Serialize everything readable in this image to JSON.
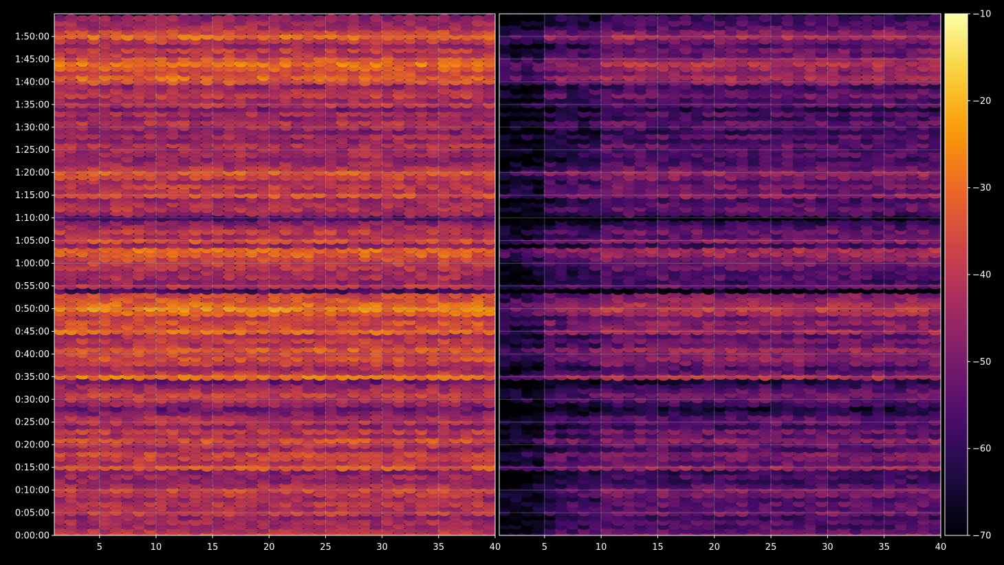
{
  "chart_data": {
    "type": "heatmap",
    "title": "",
    "xlabel": "",
    "ylabel": "",
    "background": "#000000",
    "grid": true,
    "colormap": "inferno",
    "colormap_stops": [
      "#000004",
      "#1b0c41",
      "#4a0c6b",
      "#781c6d",
      "#a52c60",
      "#cf4446",
      "#ed6925",
      "#fb9b06",
      "#f7d13d",
      "#fcffa4"
    ],
    "panels": [
      {
        "name": "left",
        "xlim": [
          1,
          40
        ],
        "x_ticks": [
          "5",
          "10",
          "15",
          "20",
          "25",
          "30",
          "35",
          "40"
        ],
        "x_tick_values": [
          5,
          10,
          15,
          20,
          25,
          30,
          35,
          40
        ],
        "level_offset": 0
      },
      {
        "name": "right",
        "xlim": [
          1,
          40
        ],
        "x_ticks": [
          "5",
          "10",
          "15",
          "20",
          "25",
          "30",
          "35",
          "40"
        ],
        "x_tick_values": [
          5,
          10,
          15,
          20,
          25,
          30,
          35,
          40
        ],
        "level_offset": -12
      }
    ],
    "y_range_seconds": [
      0,
      6900
    ],
    "y_ticks": [
      "0:00:00",
      "0:05:00",
      "0:10:00",
      "0:15:00",
      "0:20:00",
      "0:25:00",
      "0:30:00",
      "0:35:00",
      "0:40:00",
      "0:45:00",
      "0:50:00",
      "0:55:00",
      "1:00:00",
      "1:05:00",
      "1:10:00",
      "1:15:00",
      "1:20:00",
      "1:25:00",
      "1:30:00",
      "1:35:00",
      "1:40:00",
      "1:45:00",
      "1:50:00"
    ],
    "y_tick_seconds": [
      0,
      300,
      600,
      900,
      1200,
      1500,
      1800,
      2100,
      2400,
      2700,
      3000,
      3300,
      3600,
      3900,
      4200,
      4500,
      4800,
      5100,
      5400,
      5700,
      6000,
      6300,
      6600
    ],
    "colorbar": {
      "range": [
        -70,
        -10
      ],
      "ticks": [
        "−10",
        "−20",
        "−30",
        "−40",
        "−50",
        "−60",
        "−70"
      ],
      "tick_values": [
        -10,
        -20,
        -30,
        -40,
        -50,
        -60,
        -70
      ]
    },
    "row_levels_dB": {
      "description_units": "dB",
      "rows": [
        [
          0,
          -34
        ],
        [
          60,
          -40
        ],
        [
          120,
          -44
        ],
        [
          180,
          -42
        ],
        [
          240,
          -46
        ],
        [
          300,
          -38
        ],
        [
          360,
          -42
        ],
        [
          420,
          -40
        ],
        [
          480,
          -44
        ],
        [
          540,
          -38
        ],
        [
          600,
          -36
        ],
        [
          660,
          -42
        ],
        [
          720,
          -46
        ],
        [
          780,
          -44
        ],
        [
          840,
          -48
        ],
        [
          900,
          -32
        ],
        [
          960,
          -40
        ],
        [
          1020,
          -38
        ],
        [
          1080,
          -36
        ],
        [
          1140,
          -44
        ],
        [
          1200,
          -40
        ],
        [
          1260,
          -34
        ],
        [
          1320,
          -42
        ],
        [
          1380,
          -38
        ],
        [
          1440,
          -46
        ],
        [
          1500,
          -40
        ],
        [
          1560,
          -42
        ],
        [
          1620,
          -48
        ],
        [
          1680,
          -52
        ],
        [
          1740,
          -46
        ],
        [
          1800,
          -40
        ],
        [
          1860,
          -38
        ],
        [
          1920,
          -42
        ],
        [
          1980,
          -46
        ],
        [
          2040,
          -52
        ],
        [
          2100,
          -28
        ],
        [
          2160,
          -40
        ],
        [
          2220,
          -44
        ],
        [
          2280,
          -38
        ],
        [
          2340,
          -34
        ],
        [
          2400,
          -36
        ],
        [
          2460,
          -32
        ],
        [
          2520,
          -40
        ],
        [
          2580,
          -38
        ],
        [
          2640,
          -42
        ],
        [
          2700,
          -30
        ],
        [
          2760,
          -36
        ],
        [
          2820,
          -34
        ],
        [
          2880,
          -38
        ],
        [
          2940,
          -30
        ],
        [
          3000,
          -26
        ],
        [
          3060,
          -30
        ],
        [
          3120,
          -34
        ],
        [
          3180,
          -36
        ],
        [
          3240,
          -58
        ],
        [
          3300,
          -40
        ],
        [
          3360,
          -46
        ],
        [
          3420,
          -42
        ],
        [
          3480,
          -44
        ],
        [
          3540,
          -40
        ],
        [
          3600,
          -38
        ],
        [
          3660,
          -36
        ],
        [
          3720,
          -32
        ],
        [
          3780,
          -30
        ],
        [
          3840,
          -46
        ],
        [
          3900,
          -34
        ],
        [
          3960,
          -42
        ],
        [
          4020,
          -38
        ],
        [
          4080,
          -44
        ],
        [
          4140,
          -48
        ],
        [
          4200,
          -56
        ],
        [
          4260,
          -44
        ],
        [
          4320,
          -40
        ],
        [
          4380,
          -42
        ],
        [
          4440,
          -46
        ],
        [
          4500,
          -34
        ],
        [
          4560,
          -40
        ],
        [
          4620,
          -38
        ],
        [
          4680,
          -42
        ],
        [
          4740,
          -36
        ],
        [
          4800,
          -32
        ],
        [
          4860,
          -40
        ],
        [
          4920,
          -44
        ],
        [
          4980,
          -46
        ],
        [
          5040,
          -42
        ],
        [
          5100,
          -44
        ],
        [
          5160,
          -40
        ],
        [
          5220,
          -46
        ],
        [
          5280,
          -42
        ],
        [
          5340,
          -48
        ],
        [
          5400,
          -44
        ],
        [
          5460,
          -40
        ],
        [
          5520,
          -46
        ],
        [
          5580,
          -42
        ],
        [
          5640,
          -50
        ],
        [
          5700,
          -40
        ],
        [
          5760,
          -44
        ],
        [
          5820,
          -38
        ],
        [
          5880,
          -42
        ],
        [
          5940,
          -46
        ],
        [
          6000,
          -34
        ],
        [
          6060,
          -30
        ],
        [
          6120,
          -36
        ],
        [
          6180,
          -32
        ],
        [
          6240,
          -28
        ],
        [
          6300,
          -34
        ],
        [
          6360,
          -40
        ],
        [
          6420,
          -38
        ],
        [
          6480,
          -44
        ],
        [
          6540,
          -38
        ],
        [
          6600,
          -30
        ],
        [
          6660,
          -36
        ],
        [
          6720,
          -42
        ],
        [
          6780,
          -44
        ],
        [
          6840,
          -46
        ]
      ]
    }
  }
}
